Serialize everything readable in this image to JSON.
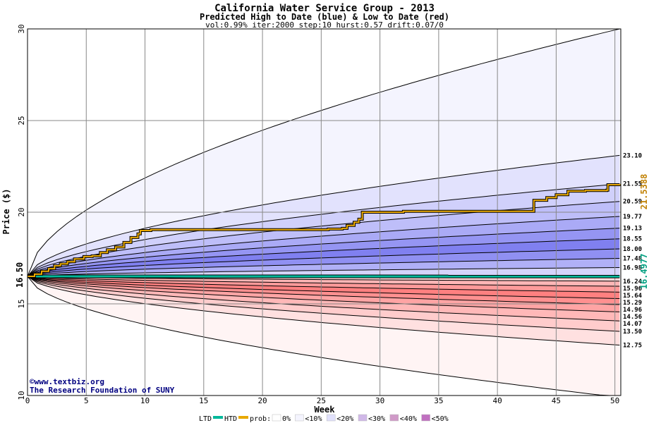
{
  "chart_data": {
    "type": "area",
    "title": "California Water Service Group - 2013",
    "subtitle": "Predicted High to Date (blue) &  Low to Date (red)",
    "params": "vol:0.99% iter:2000 step:10 hurst:0.57 drift:0.07/0",
    "xlabel": "Week",
    "ylabel": "Price ($)",
    "xlim": [
      0,
      50.5
    ],
    "ylim": [
      10,
      30
    ],
    "x_ticks": [
      0,
      5,
      10,
      15,
      20,
      25,
      30,
      35,
      40,
      45,
      50
    ],
    "y_ticks": [
      10,
      15,
      20,
      25,
      30
    ],
    "grid": true,
    "start_price": 16.5,
    "start_label": "16.50",
    "high_bands": [
      {
        "final": 30.0,
        "label": ""
      },
      {
        "final": 23.1,
        "label": "23.10"
      },
      {
        "final": 21.55,
        "label": "21.55"
      },
      {
        "final": 20.59,
        "label": "20.59"
      },
      {
        "final": 19.77,
        "label": "19.77"
      },
      {
        "final": 19.13,
        "label": "19.13"
      },
      {
        "final": 18.55,
        "label": "18.55"
      },
      {
        "final": 18.0,
        "label": "18.00"
      },
      {
        "final": 17.48,
        "label": "17.48"
      },
      {
        "final": 16.98,
        "label": "16.98"
      }
    ],
    "low_bands": [
      {
        "final": 9.9,
        "label": ""
      },
      {
        "final": 12.75,
        "label": "12.75"
      },
      {
        "final": 13.5,
        "label": "13.50"
      },
      {
        "final": 14.07,
        "label": "14.07"
      },
      {
        "final": 14.56,
        "label": "14.56"
      },
      {
        "final": 14.96,
        "label": "14.96"
      },
      {
        "final": 15.29,
        "label": "15.29"
      },
      {
        "final": 15.64,
        "label": "15.64"
      },
      {
        "final": 15.96,
        "label": "15.96"
      },
      {
        "final": 16.24,
        "label": "16.24"
      }
    ],
    "band_colors_high": [
      "#f4f4fe",
      "#e2e2fd",
      "#d0d0fb",
      "#bebef9",
      "#aaaaf6",
      "#9595f3",
      "#8080f0",
      "#9090f2",
      "#b0b0f7",
      "#d4d4fb"
    ],
    "band_colors_low": [
      "#fff4f4",
      "#ffe0e0",
      "#ffcccc",
      "#ffb8b8",
      "#ffa4a4",
      "#ff9090",
      "#ff8080",
      "#ff9a9a",
      "#ffb6b6",
      "#ffd8d8"
    ],
    "htd_series": {
      "name": "HTD",
      "color": "#e8a800",
      "final_value": 21.5388,
      "final_label": "21.5388",
      "points": [
        [
          0,
          16.5
        ],
        [
          0.6,
          16.62
        ],
        [
          1.2,
          16.78
        ],
        [
          1.8,
          16.92
        ],
        [
          2.3,
          17.08
        ],
        [
          2.8,
          17.18
        ],
        [
          3.4,
          17.3
        ],
        [
          4.0,
          17.45
        ],
        [
          4.8,
          17.58
        ],
        [
          5.5,
          17.62
        ],
        [
          6.2,
          17.8
        ],
        [
          6.8,
          17.95
        ],
        [
          7.5,
          18.1
        ],
        [
          8.2,
          18.35
        ],
        [
          8.8,
          18.62
        ],
        [
          9.4,
          18.82
        ],
        [
          9.6,
          19.0
        ],
        [
          10.5,
          19.05
        ],
        [
          25.0,
          19.05
        ],
        [
          25.6,
          19.08
        ],
        [
          26.8,
          19.12
        ],
        [
          27.2,
          19.28
        ],
        [
          27.8,
          19.45
        ],
        [
          28.2,
          19.62
        ],
        [
          28.5,
          20.0
        ],
        [
          32.0,
          20.05
        ],
        [
          43.0,
          20.05
        ],
        [
          43.1,
          20.65
        ],
        [
          44.2,
          20.8
        ],
        [
          45.0,
          20.95
        ],
        [
          46.0,
          21.15
        ],
        [
          47.5,
          21.18
        ],
        [
          49.3,
          21.2
        ],
        [
          49.4,
          21.5
        ],
        [
          50.4,
          21.54
        ]
      ]
    },
    "ltd_series": {
      "name": "LTD",
      "color": "#00b89a",
      "final_value": 16.4977,
      "final_label": "16.4977",
      "points": [
        [
          0,
          16.5
        ],
        [
          50.4,
          16.4977
        ]
      ]
    }
  },
  "credit": {
    "site": "www.textbiz.org",
    "copyright_symbol": "©",
    "org": "The Research Foundation of SUNY"
  },
  "legend": {
    "ltd": "LTD",
    "htd": "HTD",
    "prob_prefix": "prob:",
    "items": [
      {
        "label": "0%",
        "color": "#ffffff"
      },
      {
        "label": "<10%",
        "color": "#f4f4fe"
      },
      {
        "label": "<20%",
        "color": "#e0e0fb"
      },
      {
        "label": "<30%",
        "color": "#d0b8e8"
      },
      {
        "label": "<40%",
        "color": "#d09ac8"
      },
      {
        "label": "<50%",
        "color": "#c070c0"
      }
    ]
  }
}
